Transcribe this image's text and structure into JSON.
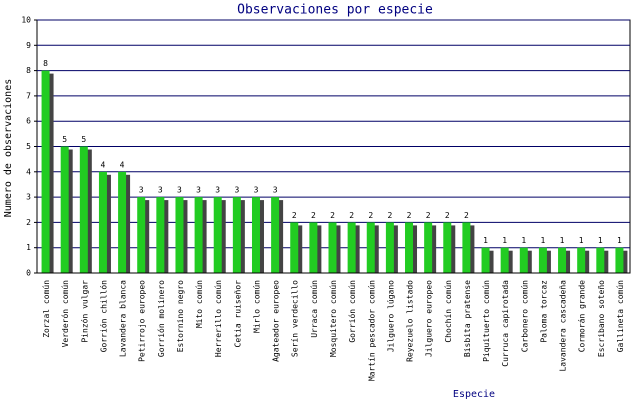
{
  "chart_data": {
    "type": "bar",
    "title": "Observaciones por especie",
    "x_label": "Especie",
    "y_label": "Numero de observaciones",
    "categories": [
      "Zorzal común",
      "Verderón común",
      "Pinzón vulgar",
      "Gorrión chillón",
      "Lavandera blanca",
      "Petirrojo europeo",
      "Gorrión molinero",
      "Estornino negro",
      "Mito común",
      "Herrerillo común",
      "Cetia ruiseñor",
      "Mirlo común",
      "Agateador europeo",
      "Serín verdecillo",
      "Urraca común",
      "Mosquitero común",
      "Gorrión común",
      "Martín pescador común",
      "Jilguero lúgano",
      "Reyezuelo listado",
      "Jilguero europeo",
      "Chochín común",
      "Bisbita pratense",
      "Piquituerto común",
      "Curruca capirotada",
      "Carbonero común",
      "Paloma torcaz",
      "Lavandera cascadeña",
      "Cormorán grande",
      "Escribano soteño",
      "Gallineta común"
    ],
    "values": [
      8,
      5,
      5,
      4,
      4,
      3,
      3,
      3,
      3,
      3,
      3,
      3,
      3,
      2,
      2,
      2,
      2,
      2,
      2,
      2,
      2,
      2,
      2,
      1,
      1,
      1,
      1,
      1,
      1,
      1,
      1
    ],
    "color": "#22cc22",
    "ylim": [
      0,
      10
    ],
    "yticks": [
      0,
      1,
      2,
      3,
      4,
      5,
      6,
      7,
      8,
      9,
      10
    ],
    "grid": true
  }
}
